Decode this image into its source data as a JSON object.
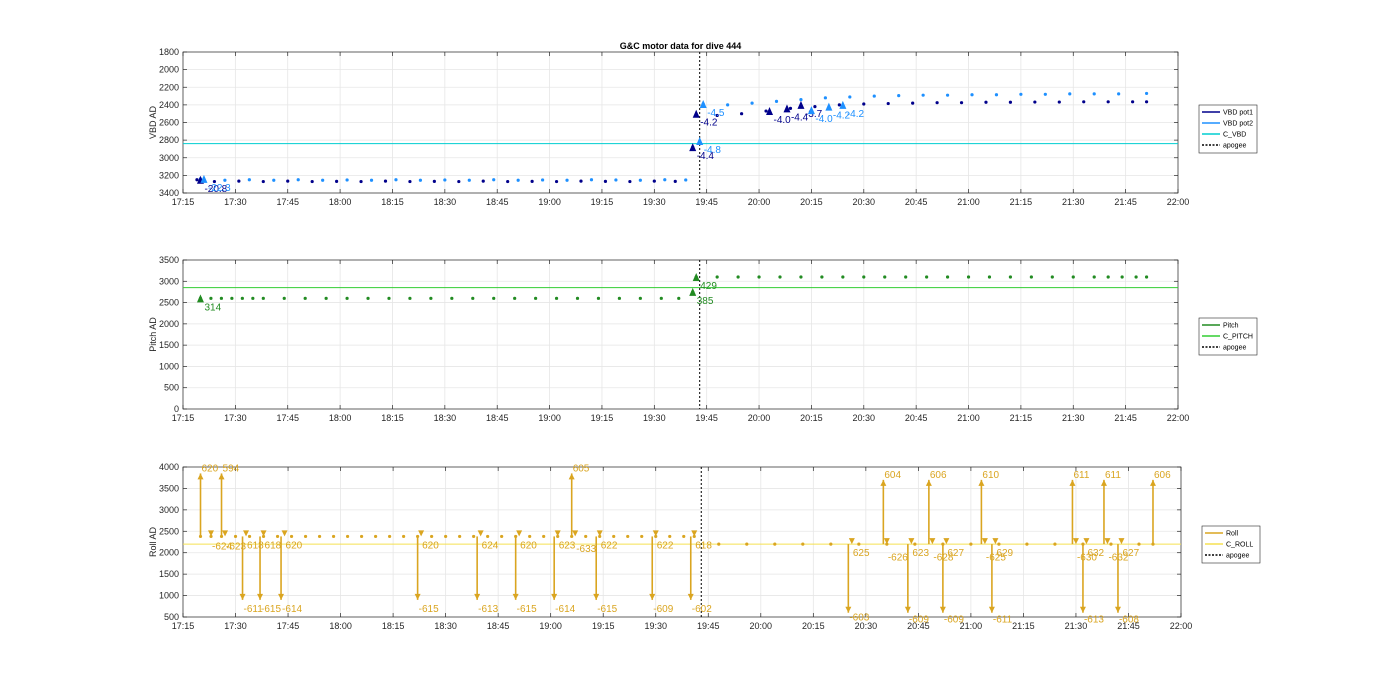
{
  "chart_data": [
    {
      "type": "line",
      "title": "G&C motor data for dive 444",
      "ylabel": "VBD AD",
      "ylim": [
        1800,
        3400
      ],
      "y_reversed": true,
      "yticks": [
        1800,
        2000,
        2200,
        2400,
        2600,
        2800,
        3000,
        3200,
        3400
      ],
      "ytick_labels": [
        "1800",
        "2000",
        "2200",
        "2400",
        "2600",
        "2800",
        "3000",
        "3200",
        "3400"
      ],
      "xlim": [
        "17:15",
        "22:00"
      ],
      "xtick_labels": [
        "17:15",
        "17:30",
        "17:45",
        "18:00",
        "18:15",
        "18:30",
        "18:45",
        "19:00",
        "19:15",
        "19:30",
        "19:45",
        "20:00",
        "20:15",
        "20:30",
        "20:45",
        "21:00",
        "21:15",
        "21:30",
        "21:45",
        "22:00"
      ],
      "grid": true,
      "legend": {
        "placement": "right",
        "entries": [
          "VBD pot1",
          "VBD pot2",
          "C_VBD",
          "apogee"
        ]
      },
      "colors": {
        "VBD pot1": "#00008b",
        "VBD pot2": "#1e90ff",
        "C_VBD": "#00ced1",
        "apogee": "#000000"
      },
      "hline": {
        "name": "C_VBD",
        "y": 2840
      },
      "apogee_x": "19:43",
      "series": [
        {
          "name": "VBD pot1",
          "x": [
            "17:19",
            "17:24",
            "17:31",
            "17:38",
            "17:45",
            "17:52",
            "17:59",
            "18:06",
            "18:13",
            "18:20",
            "18:27",
            "18:34",
            "18:41",
            "18:48",
            "18:55",
            "19:02",
            "19:09",
            "19:16",
            "19:23",
            "19:30",
            "19:36",
            "19:41",
            "19:48",
            "19:55",
            "20:02",
            "20:09",
            "20:16",
            "20:23",
            "20:30",
            "20:37",
            "20:44",
            "20:51",
            "20:58",
            "21:05",
            "21:12",
            "21:19",
            "21:26",
            "21:33",
            "21:40",
            "21:47",
            "21:51"
          ],
          "y": [
            3250,
            3270,
            3265,
            3270,
            3265,
            3270,
            3268,
            3270,
            3265,
            3270,
            3268,
            3270,
            3265,
            3270,
            3268,
            3270,
            3265,
            3268,
            3270,
            3265,
            3268,
            2880,
            2520,
            2500,
            2470,
            2440,
            2420,
            2400,
            2390,
            2385,
            2380,
            2375,
            2375,
            2370,
            2370,
            2368,
            2368,
            2365,
            2365,
            2365,
            2365
          ]
        },
        {
          "name": "VBD pot2",
          "x": [
            "17:20",
            "17:27",
            "17:34",
            "17:41",
            "17:48",
            "17:55",
            "18:02",
            "18:09",
            "18:16",
            "18:23",
            "18:30",
            "18:37",
            "18:44",
            "18:51",
            "18:58",
            "19:05",
            "19:12",
            "19:19",
            "19:26",
            "19:33",
            "19:39",
            "19:44",
            "19:51",
            "19:58",
            "20:05",
            "20:12",
            "20:19",
            "20:26",
            "20:33",
            "20:40",
            "20:47",
            "20:54",
            "21:01",
            "21:08",
            "21:15",
            "21:22",
            "21:29",
            "21:36",
            "21:43",
            "21:51"
          ],
          "y": [
            3240,
            3255,
            3250,
            3255,
            3250,
            3255,
            3252,
            3255,
            3250,
            3255,
            3252,
            3255,
            3250,
            3255,
            3252,
            3255,
            3250,
            3252,
            3255,
            3250,
            3252,
            2390,
            2400,
            2380,
            2360,
            2340,
            2320,
            2310,
            2300,
            2295,
            2290,
            2290,
            2285,
            2285,
            2280,
            2280,
            2275,
            2275,
            2275,
            2270
          ]
        }
      ],
      "annotations": [
        {
          "x": "17:20",
          "y": 3250,
          "text": "-20.8",
          "color": "#00008b"
        },
        {
          "x": "17:21",
          "y": 3240,
          "text": "-22.3",
          "color": "#1e90ff"
        },
        {
          "x": "19:42",
          "y": 2500,
          "text": "-4.2",
          "color": "#00008b"
        },
        {
          "x": "19:41",
          "y": 2880,
          "text": "-4.4",
          "color": "#00008b"
        },
        {
          "x": "19:43",
          "y": 2810,
          "text": "-4.8",
          "color": "#1e90ff"
        },
        {
          "x": "19:44",
          "y": 2390,
          "text": "-4.5",
          "color": "#1e90ff"
        },
        {
          "x": "20:03",
          "y": 2470,
          "text": "-4.0",
          "color": "#00008b"
        },
        {
          "x": "20:08",
          "y": 2440,
          "text": "-4.4",
          "color": "#00008b"
        },
        {
          "x": "20:12",
          "y": 2400,
          "text": "-3.7",
          "color": "#00008b"
        },
        {
          "x": "20:15",
          "y": 2460,
          "text": "-4.0",
          "color": "#1e90ff"
        },
        {
          "x": "20:20",
          "y": 2420,
          "text": "-4.2",
          "color": "#1e90ff"
        },
        {
          "x": "20:24",
          "y": 2400,
          "text": "-4.2",
          "color": "#1e90ff"
        }
      ]
    },
    {
      "type": "line",
      "title": "",
      "ylabel": "Pitch AD",
      "ylim": [
        0,
        3500
      ],
      "yticks": [
        0,
        500,
        1000,
        1500,
        2000,
        2500,
        3000,
        3500
      ],
      "ytick_labels": [
        "0",
        "500",
        "1000",
        "1500",
        "2000",
        "2500",
        "3000",
        "3500"
      ],
      "xlim": [
        "17:15",
        "22:00"
      ],
      "xtick_labels": [
        "17:15",
        "17:30",
        "17:45",
        "18:00",
        "18:15",
        "18:30",
        "18:45",
        "19:00",
        "19:15",
        "19:30",
        "19:45",
        "20:00",
        "20:15",
        "20:30",
        "20:45",
        "21:00",
        "21:15",
        "21:30",
        "21:45",
        "22:00"
      ],
      "grid": true,
      "legend": {
        "placement": "right",
        "entries": [
          "Pitch",
          "C_PITCH",
          "apogee"
        ]
      },
      "colors": {
        "Pitch": "#228b22",
        "C_PITCH": "#32cd32",
        "apogee": "#000000"
      },
      "hline": {
        "name": "C_PITCH",
        "y": 2850
      },
      "apogee_x": "19:43",
      "series": [
        {
          "name": "Pitch",
          "x": [
            "17:20",
            "17:23",
            "17:26",
            "17:29",
            "17:32",
            "17:35",
            "17:38",
            "17:44",
            "17:50",
            "17:56",
            "18:02",
            "18:08",
            "18:14",
            "18:20",
            "18:26",
            "18:32",
            "18:38",
            "18:44",
            "18:50",
            "18:56",
            "19:02",
            "19:08",
            "19:14",
            "19:20",
            "19:26",
            "19:32",
            "19:37",
            "19:41",
            "19:42",
            "19:48",
            "19:54",
            "20:00",
            "20:06",
            "20:12",
            "20:18",
            "20:24",
            "20:30",
            "20:36",
            "20:42",
            "20:48",
            "20:54",
            "21:00",
            "21:06",
            "21:12",
            "21:18",
            "21:24",
            "21:30",
            "21:36",
            "21:40",
            "21:44",
            "21:48",
            "21:51"
          ],
          "y": [
            2600,
            2600,
            2600,
            2600,
            2600,
            2600,
            2600,
            2600,
            2600,
            2600,
            2600,
            2600,
            2600,
            2600,
            2600,
            2600,
            2600,
            2600,
            2600,
            2600,
            2600,
            2600,
            2600,
            2600,
            2600,
            2600,
            2600,
            2750,
            3100,
            3100,
            3100,
            3100,
            3100,
            3100,
            3100,
            3100,
            3100,
            3100,
            3100,
            3100,
            3100,
            3100,
            3100,
            3100,
            3100,
            3100,
            3100,
            3100,
            3100,
            3100,
            3100,
            3100
          ]
        }
      ],
      "annotations": [
        {
          "x": "17:20",
          "y": 2600,
          "text": "314",
          "color": "#228b22"
        },
        {
          "x": "19:42",
          "y": 3100,
          "text": "429",
          "color": "#228b22"
        },
        {
          "x": "19:41",
          "y": 2750,
          "text": "385",
          "color": "#228b22"
        }
      ]
    },
    {
      "type": "line",
      "title": "",
      "ylabel": "Roll AD",
      "ylim": [
        500,
        4000
      ],
      "yticks": [
        500,
        1000,
        1500,
        2000,
        2500,
        3000,
        3500,
        4000
      ],
      "ytick_labels": [
        "500",
        "1000",
        "1500",
        "2000",
        "2500",
        "3000",
        "3500",
        "4000"
      ],
      "xlim": [
        "17:15",
        "22:00"
      ],
      "xtick_labels": [
        "17:15",
        "17:30",
        "17:45",
        "18:00",
        "18:15",
        "18:30",
        "18:45",
        "19:00",
        "19:15",
        "19:30",
        "19:45",
        "20:00",
        "20:15",
        "20:30",
        "20:45",
        "21:00",
        "21:15",
        "21:30",
        "21:45",
        "22:00"
      ],
      "grid": true,
      "legend": {
        "placement": "right",
        "entries": [
          "Roll",
          "C_ROLL",
          "apogee"
        ]
      },
      "colors": {
        "Roll": "#daa520",
        "C_ROLL": "#f5e050",
        "apogee": "#000000"
      },
      "hline": {
        "name": "C_ROLL",
        "y": 2200
      },
      "apogee_x": "19:43",
      "series": [
        {
          "name": "Roll",
          "x": [
            "17:20",
            "17:23",
            "17:26",
            "17:30",
            "17:34",
            "17:38",
            "17:42",
            "17:46",
            "17:50",
            "17:54",
            "17:58",
            "18:02",
            "18:06",
            "18:10",
            "18:14",
            "18:18",
            "18:22",
            "18:26",
            "18:30",
            "18:34",
            "18:38",
            "18:42",
            "18:46",
            "18:50",
            "18:54",
            "18:58",
            "19:02",
            "19:06",
            "19:10",
            "19:14",
            "19:18",
            "19:22",
            "19:26",
            "19:30",
            "19:34",
            "19:38",
            "19:41",
            "19:48",
            "19:56",
            "20:04",
            "20:12",
            "20:20",
            "20:28",
            "20:36",
            "20:44",
            "20:52",
            "21:00",
            "21:08",
            "21:16",
            "21:24",
            "21:32",
            "21:40",
            "21:48",
            "21:52"
          ],
          "y": [
            2380,
            2380,
            2380,
            2380,
            2380,
            2380,
            2380,
            2380,
            2380,
            2380,
            2380,
            2380,
            2380,
            2380,
            2380,
            2380,
            2380,
            2380,
            2380,
            2380,
            2380,
            2380,
            2380,
            2380,
            2380,
            2380,
            2380,
            2380,
            2380,
            2380,
            2380,
            2380,
            2380,
            2380,
            2380,
            2380,
            2380,
            2200,
            2200,
            2200,
            2200,
            2200,
            2200,
            2200,
            2200,
            2200,
            2200,
            2200,
            2200,
            2200,
            2200,
            2200,
            2200,
            2200
          ]
        }
      ],
      "roll_events": [
        {
          "x": "17:20",
          "to": 3850,
          "text": "620",
          "label_y": 3850
        },
        {
          "x": "17:23",
          "to": 2380,
          "text": "-624",
          "label_y": 2350
        },
        {
          "x": "17:26",
          "to": 3850,
          "text": "594",
          "label_y": 3850
        },
        {
          "x": "17:27",
          "to": 2380,
          "text": "-623",
          "label_y": 2350
        },
        {
          "x": "17:32",
          "to": 900,
          "text": "-611",
          "label_y": 900
        },
        {
          "x": "17:33",
          "to": 2380,
          "text": "618",
          "label_y": 2380
        },
        {
          "x": "17:37",
          "to": 900,
          "text": "-615",
          "label_y": 900
        },
        {
          "x": "17:38",
          "to": 2380,
          "text": "618",
          "label_y": 2380
        },
        {
          "x": "17:43",
          "to": 900,
          "text": "-614",
          "label_y": 900
        },
        {
          "x": "17:44",
          "to": 2380,
          "text": "620",
          "label_y": 2380
        },
        {
          "x": "18:22",
          "to": 900,
          "text": "-615",
          "label_y": 900
        },
        {
          "x": "18:23",
          "to": 2380,
          "text": "620",
          "label_y": 2380
        },
        {
          "x": "18:39",
          "to": 900,
          "text": "-613",
          "label_y": 900
        },
        {
          "x": "18:40",
          "to": 2380,
          "text": "624",
          "label_y": 2380
        },
        {
          "x": "18:50",
          "to": 900,
          "text": "-615",
          "label_y": 900
        },
        {
          "x": "18:51",
          "to": 2380,
          "text": "620",
          "label_y": 2380
        },
        {
          "x": "19:01",
          "to": 900,
          "text": "-614",
          "label_y": 900
        },
        {
          "x": "19:02",
          "to": 2380,
          "text": "623",
          "label_y": 2380
        },
        {
          "x": "19:06",
          "to": 3850,
          "text": "605",
          "label_y": 3850
        },
        {
          "x": "19:07",
          "to": 2380,
          "text": "-633",
          "label_y": 2300
        },
        {
          "x": "19:13",
          "to": 900,
          "text": "-615",
          "label_y": 900
        },
        {
          "x": "19:14",
          "to": 2380,
          "text": "622",
          "label_y": 2380
        },
        {
          "x": "19:29",
          "to": 900,
          "text": "-609",
          "label_y": 900
        },
        {
          "x": "19:30",
          "to": 2380,
          "text": "622",
          "label_y": 2380
        },
        {
          "x": "19:40",
          "to": 900,
          "text": "-602",
          "label_y": 900
        },
        {
          "x": "19:41",
          "to": 2380,
          "text": "618",
          "label_y": 2380
        },
        {
          "x": "20:25",
          "to": 600,
          "text": "-603",
          "label_y": 700
        },
        {
          "x": "20:26",
          "to": 2200,
          "text": "625",
          "label_y": 2200
        },
        {
          "x": "20:35",
          "to": 3700,
          "text": "604",
          "label_y": 3700
        },
        {
          "x": "20:36",
          "to": 2200,
          "text": "-626",
          "label_y": 2100
        },
        {
          "x": "20:42",
          "to": 600,
          "text": "-609",
          "label_y": 650
        },
        {
          "x": "20:43",
          "to": 2200,
          "text": "623",
          "label_y": 2200
        },
        {
          "x": "20:48",
          "to": 3700,
          "text": "606",
          "label_y": 3700
        },
        {
          "x": "20:49",
          "to": 2200,
          "text": "-628",
          "label_y": 2100
        },
        {
          "x": "20:52",
          "to": 600,
          "text": "-609",
          "label_y": 650
        },
        {
          "x": "20:53",
          "to": 2200,
          "text": "627",
          "label_y": 2200
        },
        {
          "x": "21:03",
          "to": 3700,
          "text": "610",
          "label_y": 3700
        },
        {
          "x": "21:04",
          "to": 2200,
          "text": "-625",
          "label_y": 2100
        },
        {
          "x": "21:06",
          "to": 600,
          "text": "-611",
          "label_y": 650
        },
        {
          "x": "21:07",
          "to": 2200,
          "text": "629",
          "label_y": 2200
        },
        {
          "x": "21:29",
          "to": 3700,
          "text": "611",
          "label_y": 3700
        },
        {
          "x": "21:30",
          "to": 2200,
          "text": "-630",
          "label_y": 2100
        },
        {
          "x": "21:32",
          "to": 600,
          "text": "-613",
          "label_y": 650
        },
        {
          "x": "21:33",
          "to": 2200,
          "text": "632",
          "label_y": 2200
        },
        {
          "x": "21:38",
          "to": 3700,
          "text": "611",
          "label_y": 3700
        },
        {
          "x": "21:39",
          "to": 2200,
          "text": "-632",
          "label_y": 2100
        },
        {
          "x": "21:42",
          "to": 600,
          "text": "-608",
          "label_y": 650
        },
        {
          "x": "21:43",
          "to": 2200,
          "text": "627",
          "label_y": 2200
        },
        {
          "x": "21:52",
          "to": 3700,
          "text": "606",
          "label_y": 3700
        }
      ]
    }
  ]
}
